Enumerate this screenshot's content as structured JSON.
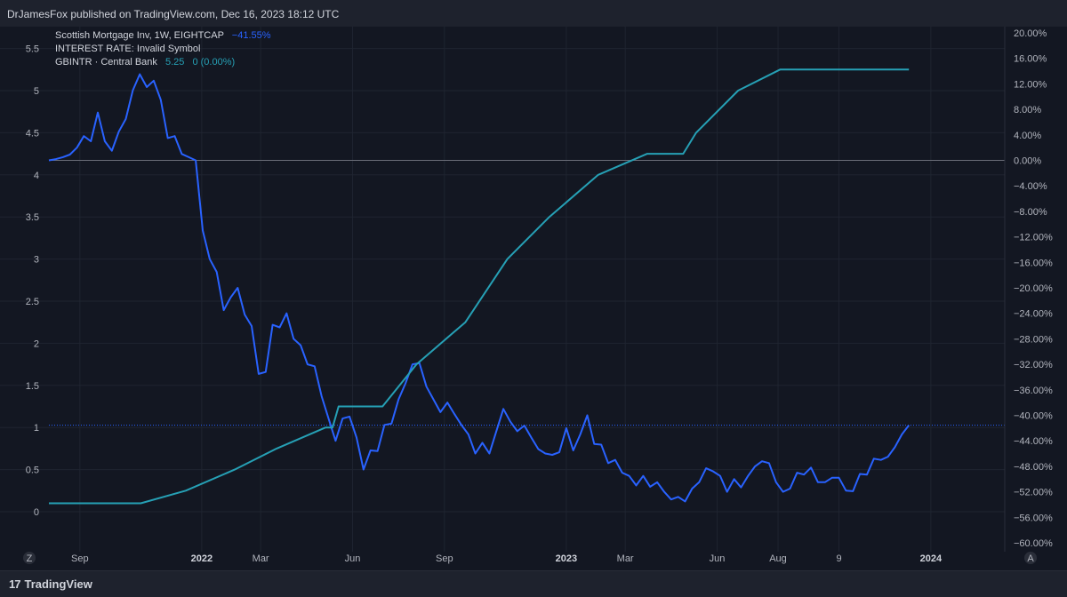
{
  "header": {
    "publish_text": "DrJamesFox published on TradingView.com, Dec 16, 2023 18:12 UTC"
  },
  "footer": {
    "logo_text": "TradingView",
    "logo_icon": "tradingview-logo-icon"
  },
  "colors": {
    "background": "#131722",
    "price_line": "#2962ff",
    "rate_line": "#26a0b5",
    "grid": "#1f2430"
  },
  "legend": [
    {
      "label": "Scottish Mortgage Inv, 1W, EIGHTCAP",
      "value": "−41.55%",
      "value2": "",
      "color": "#2962ff"
    },
    {
      "label": "INTEREST RATE: Invalid Symbol",
      "value": "",
      "value2": "",
      "color": "#26a0b5"
    },
    {
      "label": "GBINTR · Central Bank",
      "value": "5.25",
      "value2": "0 (0.00%)",
      "color": "#26a0b5"
    }
  ],
  "corner_buttons": {
    "left": "Z",
    "right": "A"
  },
  "chart_data": {
    "type": "line",
    "left_axis": {
      "min": 0,
      "max": 5.5,
      "ticks": [
        "0",
        "0.5",
        "1",
        "1.5",
        "2",
        "2.5",
        "3",
        "3.5",
        "4",
        "4.5",
        "5",
        "5.5"
      ]
    },
    "right_axis": {
      "min": -60,
      "max": 20,
      "unit": "%",
      "ticks": [
        "20.00%",
        "16.00%",
        "12.00%",
        "8.00%",
        "4.00%",
        "0.00%",
        "−4.00%",
        "−8.00%",
        "−12.00%",
        "−16.00%",
        "−20.00%",
        "−24.00%",
        "−28.00%",
        "−32.00%",
        "−36.00%",
        "−40.00%",
        "−44.00%",
        "−48.00%",
        "−52.00%",
        "−56.00%",
        "−60.00%"
      ]
    },
    "x_axis": {
      "start": "2021-08-01",
      "end": "2024-03-15",
      "ticks": [
        {
          "date": "2021-09-01",
          "label": "Sep",
          "bold": false
        },
        {
          "date": "2022-01-01",
          "label": "2022",
          "bold": true
        },
        {
          "date": "2022-03-01",
          "label": "Mar",
          "bold": false
        },
        {
          "date": "2022-06-01",
          "label": "Jun",
          "bold": false
        },
        {
          "date": "2022-09-01",
          "label": "Sep",
          "bold": false
        },
        {
          "date": "2023-01-01",
          "label": "2023",
          "bold": true
        },
        {
          "date": "2023-03-01",
          "label": "Mar",
          "bold": false
        },
        {
          "date": "2023-06-01",
          "label": "Jun",
          "bold": false
        },
        {
          "date": "2023-08-01",
          "label": "Aug",
          "bold": false
        },
        {
          "date": "2023-10-01",
          "label": "9",
          "bold": false
        },
        {
          "date": "2024-01-01",
          "label": "2024",
          "bold": true
        }
      ]
    },
    "zero_line_pct": 0,
    "last_value_line_pct": -41.55,
    "series": [
      {
        "name": "Scottish Mortgage Inv, 1W, EIGHTCAP",
        "axis": "right",
        "points": [
          [
            "2021-08-01",
            0.0
          ],
          [
            "2021-08-08",
            0.2
          ],
          [
            "2021-08-15",
            0.5
          ],
          [
            "2021-08-22",
            0.9
          ],
          [
            "2021-08-29",
            2.0
          ],
          [
            "2021-09-05",
            3.8
          ],
          [
            "2021-09-12",
            3.0
          ],
          [
            "2021-09-19",
            7.5
          ],
          [
            "2021-09-26",
            3.0
          ],
          [
            "2021-10-03",
            1.5
          ],
          [
            "2021-10-10",
            4.5
          ],
          [
            "2021-10-17",
            6.5
          ],
          [
            "2021-10-24",
            11.0
          ],
          [
            "2021-10-31",
            13.5
          ],
          [
            "2021-11-07",
            11.5
          ],
          [
            "2021-11-14",
            12.5
          ],
          [
            "2021-11-21",
            9.5
          ],
          [
            "2021-11-28",
            3.5
          ],
          [
            "2021-12-05",
            3.8
          ],
          [
            "2021-12-12",
            1.0
          ],
          [
            "2021-12-19",
            0.5
          ],
          [
            "2021-12-26",
            0.0
          ],
          [
            "2022-01-02",
            -11.0
          ],
          [
            "2022-01-09",
            -15.5
          ],
          [
            "2022-01-16",
            -17.5
          ],
          [
            "2022-01-23",
            -23.5
          ],
          [
            "2022-01-30",
            -21.5
          ],
          [
            "2022-02-06",
            -20.0
          ],
          [
            "2022-02-13",
            -24.2
          ],
          [
            "2022-02-20",
            -26.0
          ],
          [
            "2022-02-27",
            -33.5
          ],
          [
            "2022-03-06",
            -33.2
          ],
          [
            "2022-03-13",
            -25.8
          ],
          [
            "2022-03-20",
            -26.2
          ],
          [
            "2022-03-27",
            -24.0
          ],
          [
            "2022-04-03",
            -28.0
          ],
          [
            "2022-04-10",
            -29.0
          ],
          [
            "2022-04-17",
            -32.0
          ],
          [
            "2022-04-24",
            -32.3
          ],
          [
            "2022-05-01",
            -37.0
          ],
          [
            "2022-05-08",
            -40.5
          ],
          [
            "2022-05-15",
            -44.0
          ],
          [
            "2022-05-22",
            -40.5
          ],
          [
            "2022-05-29",
            -40.2
          ],
          [
            "2022-06-05",
            -43.5
          ],
          [
            "2022-06-12",
            -48.5
          ],
          [
            "2022-06-19",
            -45.5
          ],
          [
            "2022-06-26",
            -45.6
          ],
          [
            "2022-07-03",
            -41.5
          ],
          [
            "2022-07-10",
            -41.3
          ],
          [
            "2022-07-17",
            -37.5
          ],
          [
            "2022-07-24",
            -35.0
          ],
          [
            "2022-07-31",
            -32.0
          ],
          [
            "2022-08-07",
            -31.8
          ],
          [
            "2022-08-14",
            -35.5
          ],
          [
            "2022-08-21",
            -37.5
          ],
          [
            "2022-08-28",
            -39.5
          ],
          [
            "2022-09-04",
            -38.0
          ],
          [
            "2022-09-11",
            -39.8
          ],
          [
            "2022-09-18",
            -41.5
          ],
          [
            "2022-09-25",
            -43.0
          ],
          [
            "2022-10-02",
            -46.0
          ],
          [
            "2022-10-09",
            -44.3
          ],
          [
            "2022-10-16",
            -46.0
          ],
          [
            "2022-10-23",
            -42.5
          ],
          [
            "2022-10-30",
            -39.0
          ],
          [
            "2022-11-06",
            -41.0
          ],
          [
            "2022-11-13",
            -42.5
          ],
          [
            "2022-11-20",
            -41.6
          ],
          [
            "2022-11-27",
            -43.5
          ],
          [
            "2022-12-04",
            -45.3
          ],
          [
            "2022-12-11",
            -46.0
          ],
          [
            "2022-12-18",
            -46.2
          ],
          [
            "2022-12-25",
            -45.8
          ],
          [
            "2023-01-01",
            -42.0
          ],
          [
            "2023-01-08",
            -45.5
          ],
          [
            "2023-01-15",
            -43.0
          ],
          [
            "2023-01-22",
            -40.0
          ],
          [
            "2023-01-29",
            -44.5
          ],
          [
            "2023-02-05",
            -44.6
          ],
          [
            "2023-02-12",
            -47.5
          ],
          [
            "2023-02-19",
            -47.0
          ],
          [
            "2023-02-26",
            -49.0
          ],
          [
            "2023-03-05",
            -49.5
          ],
          [
            "2023-03-12",
            -51.0
          ],
          [
            "2023-03-19",
            -49.5
          ],
          [
            "2023-03-26",
            -51.2
          ],
          [
            "2023-04-02",
            -50.5
          ],
          [
            "2023-04-09",
            -52.0
          ],
          [
            "2023-04-16",
            -53.2
          ],
          [
            "2023-04-23",
            -52.8
          ],
          [
            "2023-04-30",
            -53.5
          ],
          [
            "2023-05-07",
            -51.5
          ],
          [
            "2023-05-14",
            -50.5
          ],
          [
            "2023-05-21",
            -48.3
          ],
          [
            "2023-05-28",
            -48.8
          ],
          [
            "2023-06-04",
            -49.5
          ],
          [
            "2023-06-11",
            -52.0
          ],
          [
            "2023-06-18",
            -50.0
          ],
          [
            "2023-06-25",
            -51.3
          ],
          [
            "2023-07-02",
            -49.5
          ],
          [
            "2023-07-09",
            -48.0
          ],
          [
            "2023-07-16",
            -47.2
          ],
          [
            "2023-07-23",
            -47.5
          ],
          [
            "2023-07-30",
            -50.5
          ],
          [
            "2023-08-06",
            -52.0
          ],
          [
            "2023-08-13",
            -51.5
          ],
          [
            "2023-08-20",
            -49.0
          ],
          [
            "2023-08-27",
            -49.3
          ],
          [
            "2023-09-03",
            -48.2
          ],
          [
            "2023-09-10",
            -50.5
          ],
          [
            "2023-09-17",
            -50.5
          ],
          [
            "2023-09-24",
            -49.8
          ],
          [
            "2023-10-01",
            -49.8
          ],
          [
            "2023-10-08",
            -51.8
          ],
          [
            "2023-10-15",
            -51.9
          ],
          [
            "2023-10-22",
            -49.2
          ],
          [
            "2023-10-29",
            -49.3
          ],
          [
            "2023-11-05",
            -46.8
          ],
          [
            "2023-11-12",
            -47.0
          ],
          [
            "2023-11-19",
            -46.5
          ],
          [
            "2023-11-26",
            -45.0
          ],
          [
            "2023-12-03",
            -43.0
          ],
          [
            "2023-12-10",
            -41.55
          ]
        ]
      },
      {
        "name": "GBINTR · Central Bank",
        "axis": "left",
        "points": [
          [
            "2021-08-01",
            0.1
          ],
          [
            "2021-11-01",
            0.1
          ],
          [
            "2021-12-16",
            0.25
          ],
          [
            "2022-02-03",
            0.5
          ],
          [
            "2022-03-17",
            0.75
          ],
          [
            "2022-05-05",
            1.0
          ],
          [
            "2022-05-12",
            1.0
          ],
          [
            "2022-05-18",
            1.25
          ],
          [
            "2022-06-16",
            1.25
          ],
          [
            "2022-07-01",
            1.25
          ],
          [
            "2022-08-04",
            1.75
          ],
          [
            "2022-09-22",
            2.25
          ],
          [
            "2022-11-03",
            3.0
          ],
          [
            "2022-12-15",
            3.5
          ],
          [
            "2023-02-02",
            4.0
          ],
          [
            "2023-03-23",
            4.25
          ],
          [
            "2023-04-28",
            4.25
          ],
          [
            "2023-05-11",
            4.5
          ],
          [
            "2023-06-22",
            5.0
          ],
          [
            "2023-08-03",
            5.25
          ],
          [
            "2023-12-10",
            5.25
          ]
        ]
      }
    ]
  }
}
